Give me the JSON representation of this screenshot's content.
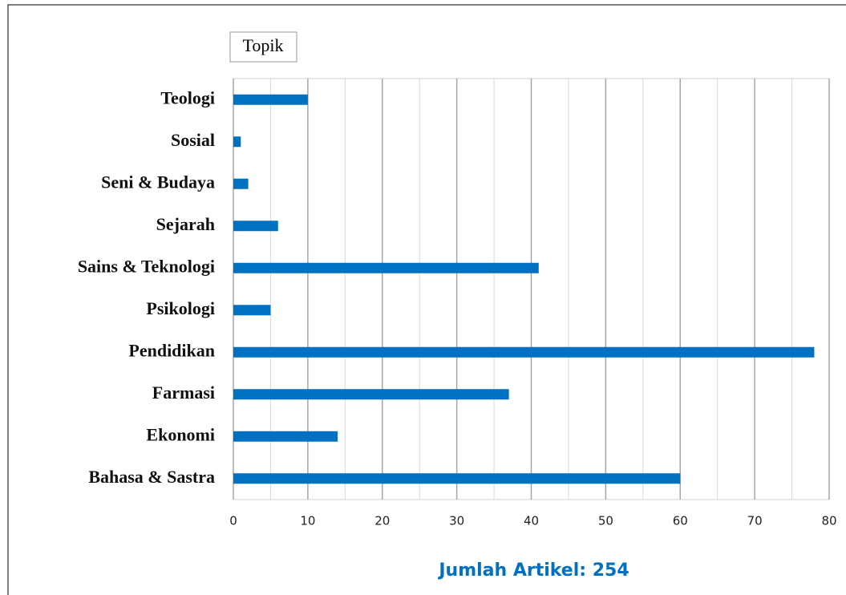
{
  "chart_data": {
    "type": "barh",
    "legend_title": "Topik",
    "categories": [
      "Teologi",
      "Sosial",
      "Seni & Budaya",
      "Sejarah",
      "Sains & Teknologi",
      "Psikologi",
      "Pendidikan",
      "Farmasi",
      "Ekonomi",
      "Bahasa & Sastra"
    ],
    "values": [
      10,
      1,
      2,
      6,
      41,
      5,
      78,
      37,
      14,
      60
    ],
    "color": "#0070c0",
    "xlim": [
      0,
      80
    ],
    "xticks": [
      0,
      10,
      20,
      30,
      40,
      50,
      60,
      70,
      80
    ],
    "xminorticks": [
      5,
      15,
      25,
      35,
      45,
      55,
      65,
      75
    ],
    "grid": true,
    "annotation": "Jumlah Artikel: 254"
  }
}
